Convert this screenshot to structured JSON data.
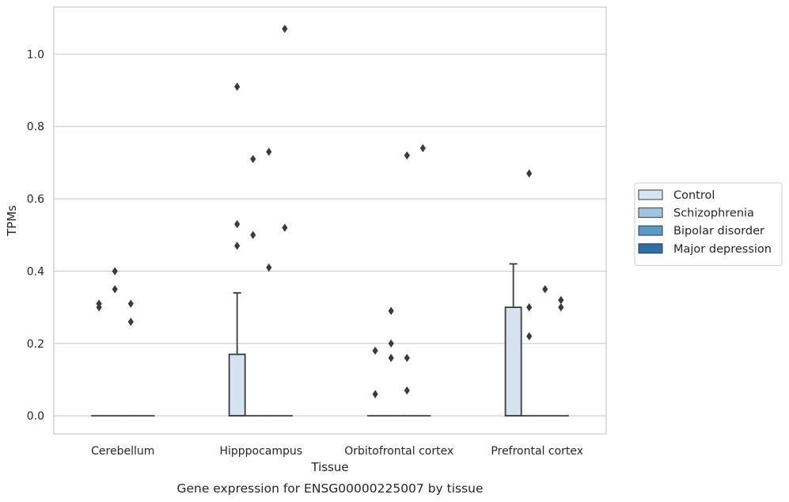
{
  "chart_data": {
    "type": "box",
    "title": "",
    "xlabel": "Tissue",
    "ylabel": "TPMs",
    "caption": "Gene expression for ENSG00000225007 by tissue",
    "ylim": [
      -0.05,
      1.13
    ],
    "yticks": [
      0.0,
      0.2,
      0.4,
      0.6,
      0.8,
      1.0
    ],
    "ytick_labels": [
      "0.0",
      "0.2",
      "0.4",
      "0.6",
      "0.8",
      "1.0"
    ],
    "grid": "horizontal",
    "legend_position": "right",
    "categories": [
      "Cerebellum",
      "Hipppocampus",
      "Orbitofrontal cortex",
      "Prefrontal cortex"
    ],
    "series": [
      {
        "name": "Control",
        "color": "#d6e4f2",
        "boxes": [
          {
            "q1": 0,
            "median": 0,
            "q3": 0,
            "whisker_low": 0,
            "whisker_high": 0,
            "outliers": [
              0.3,
              0.31
            ]
          },
          {
            "q1": 0,
            "median": 0,
            "q3": 0.17,
            "whisker_low": 0,
            "whisker_high": 0.34,
            "outliers": [
              0.91,
              0.53,
              0.47
            ]
          },
          {
            "q1": 0,
            "median": 0,
            "q3": 0,
            "whisker_low": 0,
            "whisker_high": 0,
            "outliers": [
              0.06,
              0.18
            ]
          },
          {
            "q1": 0,
            "median": 0,
            "q3": 0.3,
            "whisker_low": 0,
            "whisker_high": 0.42,
            "outliers": []
          }
        ]
      },
      {
        "name": "Schizophrenia",
        "color": "#9fc5e0",
        "boxes": [
          {
            "q1": 0,
            "median": 0,
            "q3": 0,
            "whisker_low": 0,
            "whisker_high": 0,
            "outliers": [
              0.4,
              0.35
            ]
          },
          {
            "q1": 0,
            "median": 0,
            "q3": 0,
            "whisker_low": 0,
            "whisker_high": 0,
            "outliers": [
              0.71,
              0.5
            ]
          },
          {
            "q1": 0,
            "median": 0,
            "q3": 0,
            "whisker_low": 0,
            "whisker_high": 0,
            "outliers": [
              0.29,
              0.2,
              0.16
            ]
          },
          {
            "q1": 0,
            "median": 0,
            "q3": 0,
            "whisker_low": 0,
            "whisker_high": 0,
            "outliers": [
              0.67,
              0.3,
              0.22
            ]
          }
        ]
      },
      {
        "name": "Bipolar disorder",
        "color": "#5a9ac7",
        "boxes": [
          {
            "q1": 0,
            "median": 0,
            "q3": 0,
            "whisker_low": 0,
            "whisker_high": 0,
            "outliers": [
              0.31,
              0.26
            ]
          },
          {
            "q1": 0,
            "median": 0,
            "q3": 0,
            "whisker_low": 0,
            "whisker_high": 0,
            "outliers": [
              0.73,
              0.41
            ]
          },
          {
            "q1": 0,
            "median": 0,
            "q3": 0,
            "whisker_low": 0,
            "whisker_high": 0,
            "outliers": [
              0.72,
              0.16,
              0.07
            ]
          },
          {
            "q1": 0,
            "median": 0,
            "q3": 0,
            "whisker_low": 0,
            "whisker_high": 0,
            "outliers": [
              0.35
            ]
          }
        ]
      },
      {
        "name": "Major depression",
        "color": "#2e6ea7",
        "boxes": [
          {
            "q1": 0,
            "median": 0,
            "q3": 0,
            "whisker_low": 0,
            "whisker_high": 0,
            "outliers": []
          },
          {
            "q1": 0,
            "median": 0,
            "q3": 0,
            "whisker_low": 0,
            "whisker_high": 0,
            "outliers": [
              1.07,
              0.52
            ]
          },
          {
            "q1": 0,
            "median": 0,
            "q3": 0,
            "whisker_low": 0,
            "whisker_high": 0,
            "outliers": [
              0.74
            ]
          },
          {
            "q1": 0,
            "median": 0,
            "q3": 0,
            "whisker_low": 0,
            "whisker_high": 0,
            "outliers": [
              0.32,
              0.3
            ]
          }
        ]
      }
    ]
  }
}
